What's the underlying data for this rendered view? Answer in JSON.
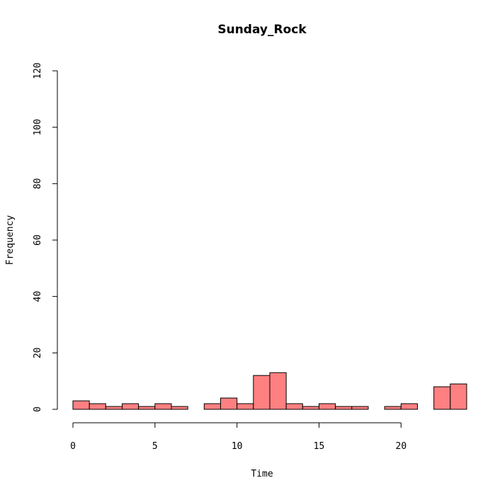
{
  "chart_data": {
    "type": "bar",
    "title": "Sunday_Rock",
    "xlabel": "Time",
    "ylabel": "Frequency",
    "xlim": [
      0,
      24
    ],
    "ylim": [
      0,
      120
    ],
    "x_ticks": [
      0,
      5,
      10,
      15,
      20
    ],
    "y_ticks": [
      0,
      20,
      40,
      60,
      80,
      100,
      120
    ],
    "bin_width": 1,
    "bins": [
      {
        "start": 0,
        "end": 1,
        "value": 3
      },
      {
        "start": 1,
        "end": 2,
        "value": 2
      },
      {
        "start": 2,
        "end": 3,
        "value": 1
      },
      {
        "start": 3,
        "end": 4,
        "value": 2
      },
      {
        "start": 4,
        "end": 5,
        "value": 1
      },
      {
        "start": 5,
        "end": 6,
        "value": 2
      },
      {
        "start": 6,
        "end": 7,
        "value": 1
      },
      {
        "start": 7,
        "end": 8,
        "value": 0
      },
      {
        "start": 8,
        "end": 9,
        "value": 2
      },
      {
        "start": 9,
        "end": 10,
        "value": 4
      },
      {
        "start": 10,
        "end": 11,
        "value": 2
      },
      {
        "start": 11,
        "end": 12,
        "value": 12
      },
      {
        "start": 12,
        "end": 13,
        "value": 13
      },
      {
        "start": 13,
        "end": 14,
        "value": 2
      },
      {
        "start": 14,
        "end": 15,
        "value": 1
      },
      {
        "start": 15,
        "end": 16,
        "value": 2
      },
      {
        "start": 16,
        "end": 17,
        "value": 1
      },
      {
        "start": 17,
        "end": 18,
        "value": 1
      },
      {
        "start": 18,
        "end": 19,
        "value": 0
      },
      {
        "start": 19,
        "end": 20,
        "value": 1
      },
      {
        "start": 20,
        "end": 21,
        "value": 2
      },
      {
        "start": 21,
        "end": 22,
        "value": 0
      },
      {
        "start": 22,
        "end": 23,
        "value": 8
      },
      {
        "start": 23,
        "end": 24,
        "value": 9
      }
    ],
    "bar_color": "#ff8080",
    "bar_edge_color": "#000000",
    "grid": false,
    "legend": "none"
  }
}
